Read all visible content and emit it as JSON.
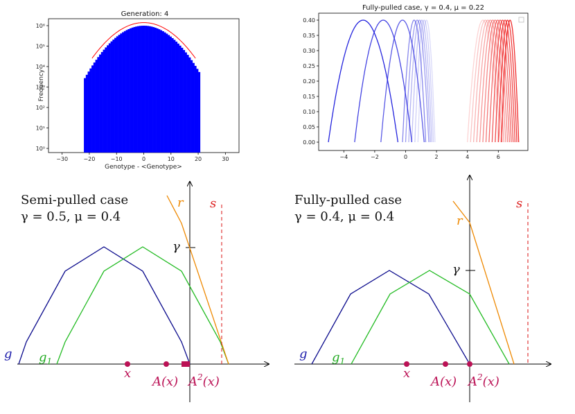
{
  "histogram": {
    "title": "Generation: 4",
    "xlabel": "Genotype - <Genotype>",
    "ylabel": "Frequency",
    "xticks": [
      "−30",
      "−20",
      "−10",
      "0",
      "10",
      "20",
      "30"
    ],
    "yticks": [
      "10⁰",
      "10¹",
      "10²",
      "10³",
      "10⁴",
      "10⁵",
      "10⁶"
    ],
    "bar_color": "#0000ff",
    "fit_color": "#ff0000"
  },
  "profiles": {
    "title": "Fully-pulled case, γ = 0.4, μ = 0.22",
    "xticks": [
      "−4",
      "−2",
      "0",
      "2",
      "4",
      "6"
    ],
    "yticks": [
      "0.00",
      "0.05",
      "0.10",
      "0.15",
      "0.20",
      "0.25",
      "0.30",
      "0.35",
      "0.40"
    ],
    "blue": "#2222dd",
    "red": "#ee2222"
  },
  "semi": {
    "caption_line1": "Semi-pulled case",
    "caption_line2": "γ = 0.5, μ = 0.4",
    "labels": {
      "g": "g",
      "g1": "g",
      "g1_sub": "1",
      "r": "r",
      "s": "s",
      "gamma": "γ",
      "x": "x",
      "Ax": "A(x)",
      "A2x": "A",
      "A2x_sup": "2",
      "A2x_arg": "(x)"
    }
  },
  "fully": {
    "caption_line1": "Fully-pulled case",
    "caption_line2": "γ = 0.4, μ = 0.4",
    "labels": {
      "g": "g",
      "g1": "g",
      "g1_sub": "1",
      "r": "r",
      "s": "s",
      "gamma": "γ",
      "x": "x",
      "Ax": "A(x)",
      "A2x": "A",
      "A2x_sup": "2",
      "A2x_arg": "(x)"
    }
  },
  "colors": {
    "g": "#0a0a8c",
    "g1": "#22bb22",
    "r": "#ee8800",
    "s": "#dd2222",
    "point": "#bb1155",
    "label_g": "#1a1aaa",
    "label_g1": "#22aa22",
    "label_r": "#ee8800",
    "label_s": "#dd2222",
    "label_pt": "#bb1155"
  }
}
